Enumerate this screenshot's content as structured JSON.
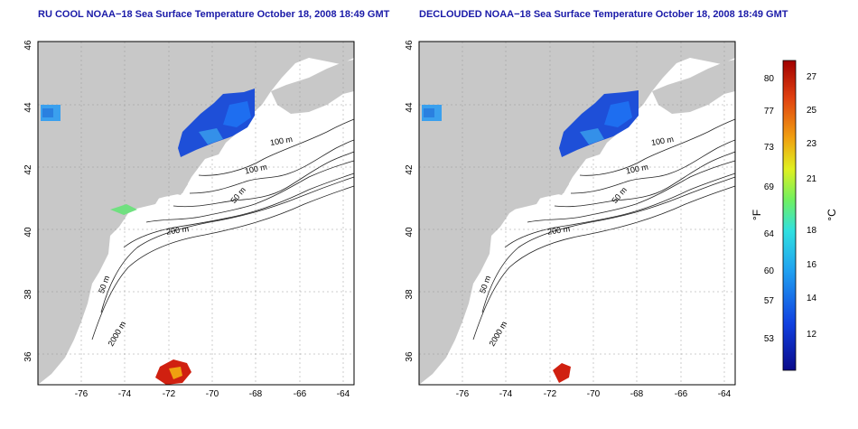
{
  "panels": [
    {
      "title": "RU COOL NOAA−18 Sea Surface Temperature October 18, 2008 18:49 GMT",
      "x_ticks": [
        "-76",
        "-74",
        "-72",
        "-70",
        "-68",
        "-66",
        "-64"
      ],
      "y_ticks": [
        "36",
        "38",
        "40",
        "42",
        "44",
        "46"
      ],
      "contour_labels": [
        "100 m",
        "100 m",
        "50 m",
        "200 m",
        "50 m",
        "2000 m"
      ]
    },
    {
      "title": "DECLOUDED NOAA−18 Sea Surface Temperature October 18, 2008 18:49 GMT",
      "x_ticks": [
        "-76",
        "-74",
        "-72",
        "-70",
        "-68",
        "-66",
        "-64"
      ],
      "y_ticks": [
        "36",
        "38",
        "40",
        "42",
        "44",
        "46"
      ],
      "contour_labels": [
        "100 m",
        "100 m",
        "50 m",
        "200 m",
        "50 m",
        "2000 m"
      ]
    }
  ],
  "colorbar": {
    "f_label": "°F",
    "c_label": "°C",
    "f_ticks": [
      "80",
      "77",
      "73",
      "69",
      "64",
      "60",
      "57",
      "53"
    ],
    "c_ticks": [
      "27",
      "25",
      "23",
      "21",
      "18",
      "16",
      "14",
      "12"
    ]
  },
  "colors": {
    "land": "#c8c8c8",
    "ocean": "#ffffff",
    "title": "#1a1aa8",
    "warm": "#d02010",
    "cool": "#1e4fd8"
  }
}
